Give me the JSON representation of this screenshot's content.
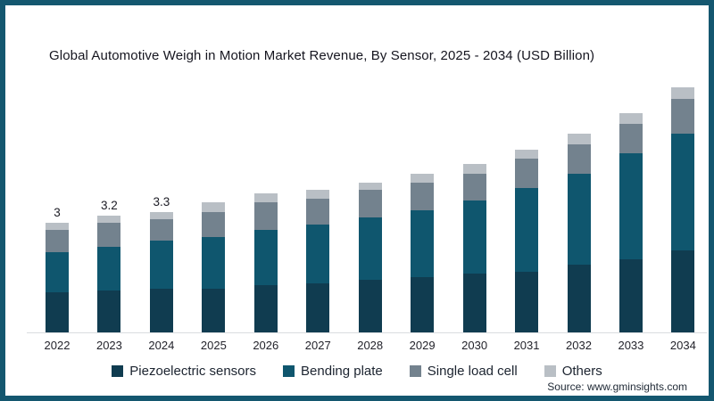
{
  "page": {
    "source": "Source: www.gminsights.com"
  },
  "colors": {
    "frame_border": "#14576f",
    "axis_line": "#d9dcdf",
    "title_text": "#15151f",
    "piezoelectric_sensors": "#103c50",
    "bending_plate": "#0f566e",
    "single_load_cell": "#73828e",
    "others": "#b9bfc5"
  },
  "chart_data": {
    "type": "bar",
    "stacked": true,
    "title": "Global Automotive Weigh in Motion Market Revenue, By Sensor, 2025 - 2034 (USD Billion)",
    "xlabel": "",
    "ylabel": "",
    "ylim": [
      0,
      7
    ],
    "grid": false,
    "legend_position": "bottom",
    "categories": [
      "2022",
      "2023",
      "2024",
      "2025",
      "2026",
      "2027",
      "2028",
      "2029",
      "2030",
      "2031",
      "2032",
      "2033",
      "2034"
    ],
    "series": [
      {
        "name": "Piezoelectric sensors",
        "color": "#103c50",
        "values": [
          1.1,
          1.15,
          1.2,
          1.2,
          1.3,
          1.35,
          1.45,
          1.5,
          1.6,
          1.65,
          1.85,
          2.0,
          2.25
        ]
      },
      {
        "name": "Bending plate",
        "color": "#0f566e",
        "values": [
          1.1,
          1.2,
          1.3,
          1.4,
          1.5,
          1.6,
          1.7,
          1.85,
          2.0,
          2.3,
          2.5,
          2.9,
          3.2
        ]
      },
      {
        "name": "Single load cell",
        "color": "#73828e",
        "values": [
          0.6,
          0.65,
          0.6,
          0.7,
          0.75,
          0.7,
          0.75,
          0.75,
          0.75,
          0.8,
          0.8,
          0.8,
          0.95
        ]
      },
      {
        "name": "Others",
        "color": "#b9bfc5",
        "values": [
          0.2,
          0.2,
          0.2,
          0.25,
          0.25,
          0.25,
          0.2,
          0.25,
          0.25,
          0.25,
          0.3,
          0.3,
          0.3
        ]
      }
    ],
    "totals": [
      3.0,
      3.2,
      3.3,
      3.55,
      3.8,
      3.9,
      4.1,
      4.35,
      4.6,
      5.0,
      5.45,
      6.0,
      6.7
    ],
    "bar_labels": {
      "2022": "3",
      "2023": "3.2",
      "2024": "3.3"
    }
  }
}
